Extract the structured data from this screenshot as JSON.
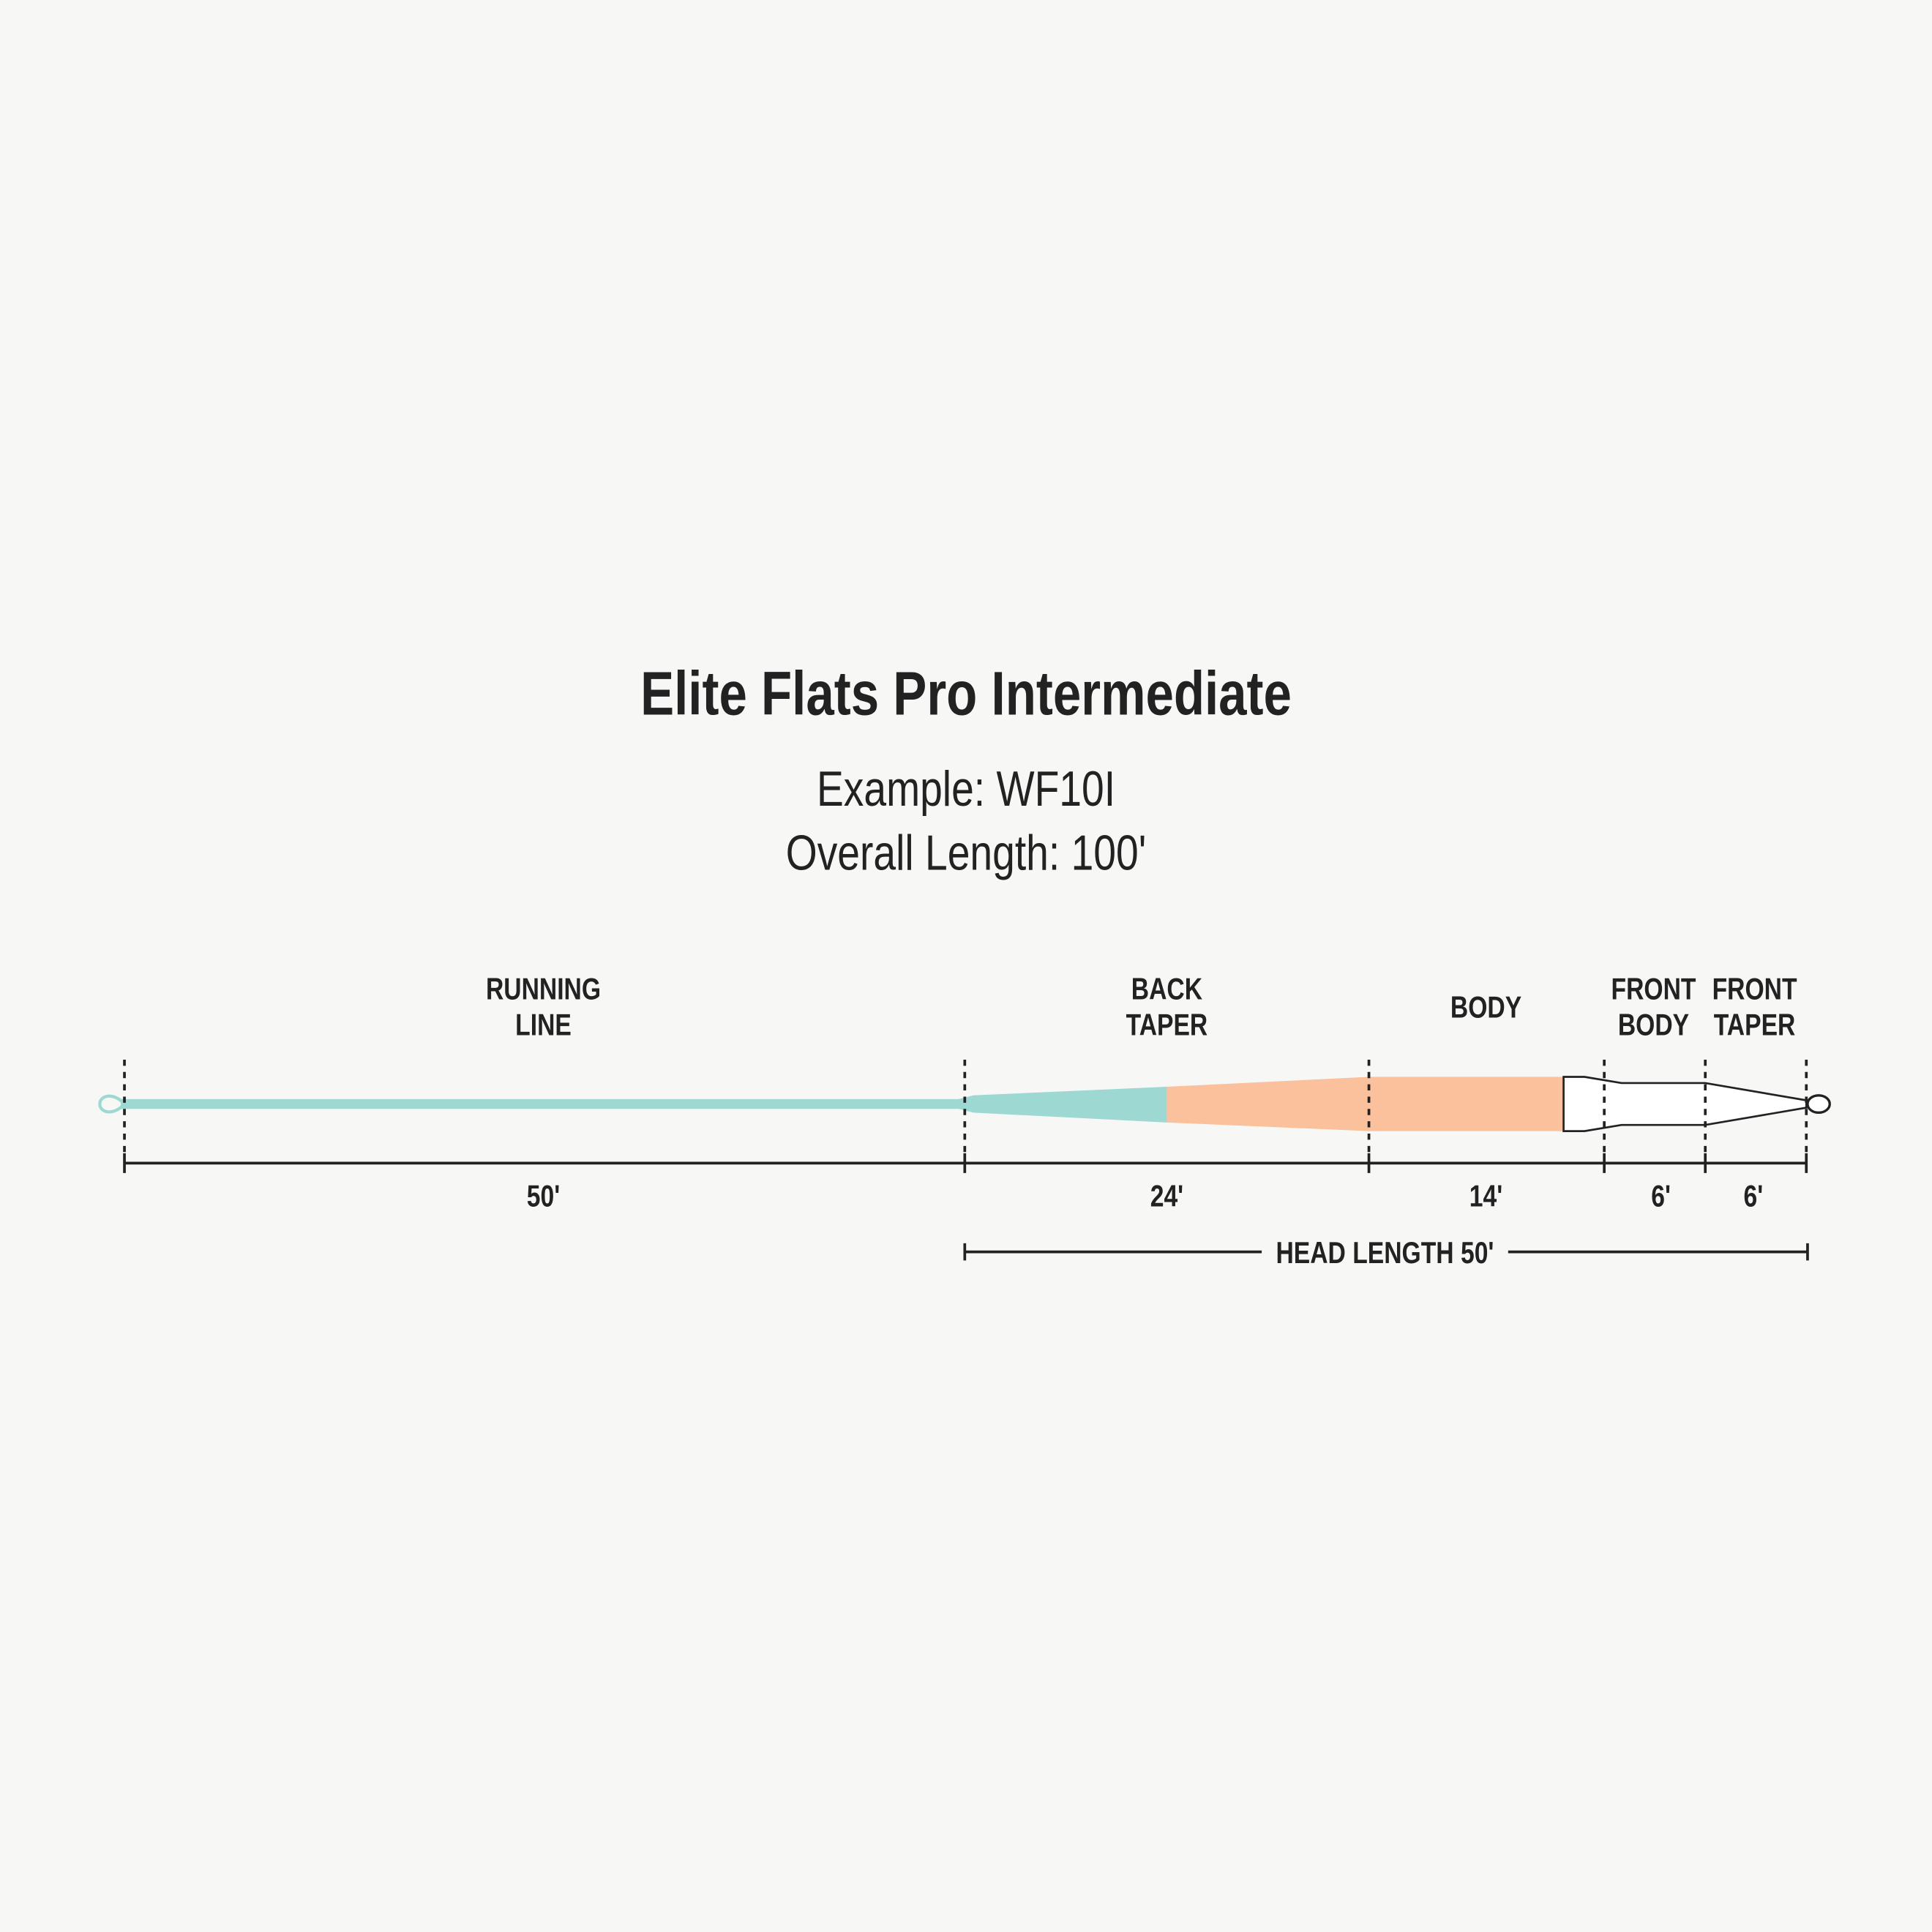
{
  "header": {
    "title": "Elite Flats Pro Intermediate",
    "example": "Example: WF10I",
    "overall_length": "Overall Length: 100'"
  },
  "sections": [
    {
      "label_line1": "RUNNING",
      "label_line2": "LINE",
      "length": "50'"
    },
    {
      "label_line1": "BACK",
      "label_line2": "TAPER",
      "length": "24'"
    },
    {
      "label_line1": "BODY",
      "label_line2": "",
      "length": "14'"
    },
    {
      "label_line1": "FRONT",
      "label_line2": "BODY",
      "length": "6'"
    },
    {
      "label_line1": "FRONT",
      "label_line2": "TAPER",
      "length": "6'"
    }
  ],
  "head_length": "HEAD LENGTH 50'",
  "colors": {
    "background": "#f7f7f5",
    "running_line": "#9dd8d3",
    "body": "#fbc09c",
    "front": "#ffffff",
    "ink": "#222222"
  }
}
